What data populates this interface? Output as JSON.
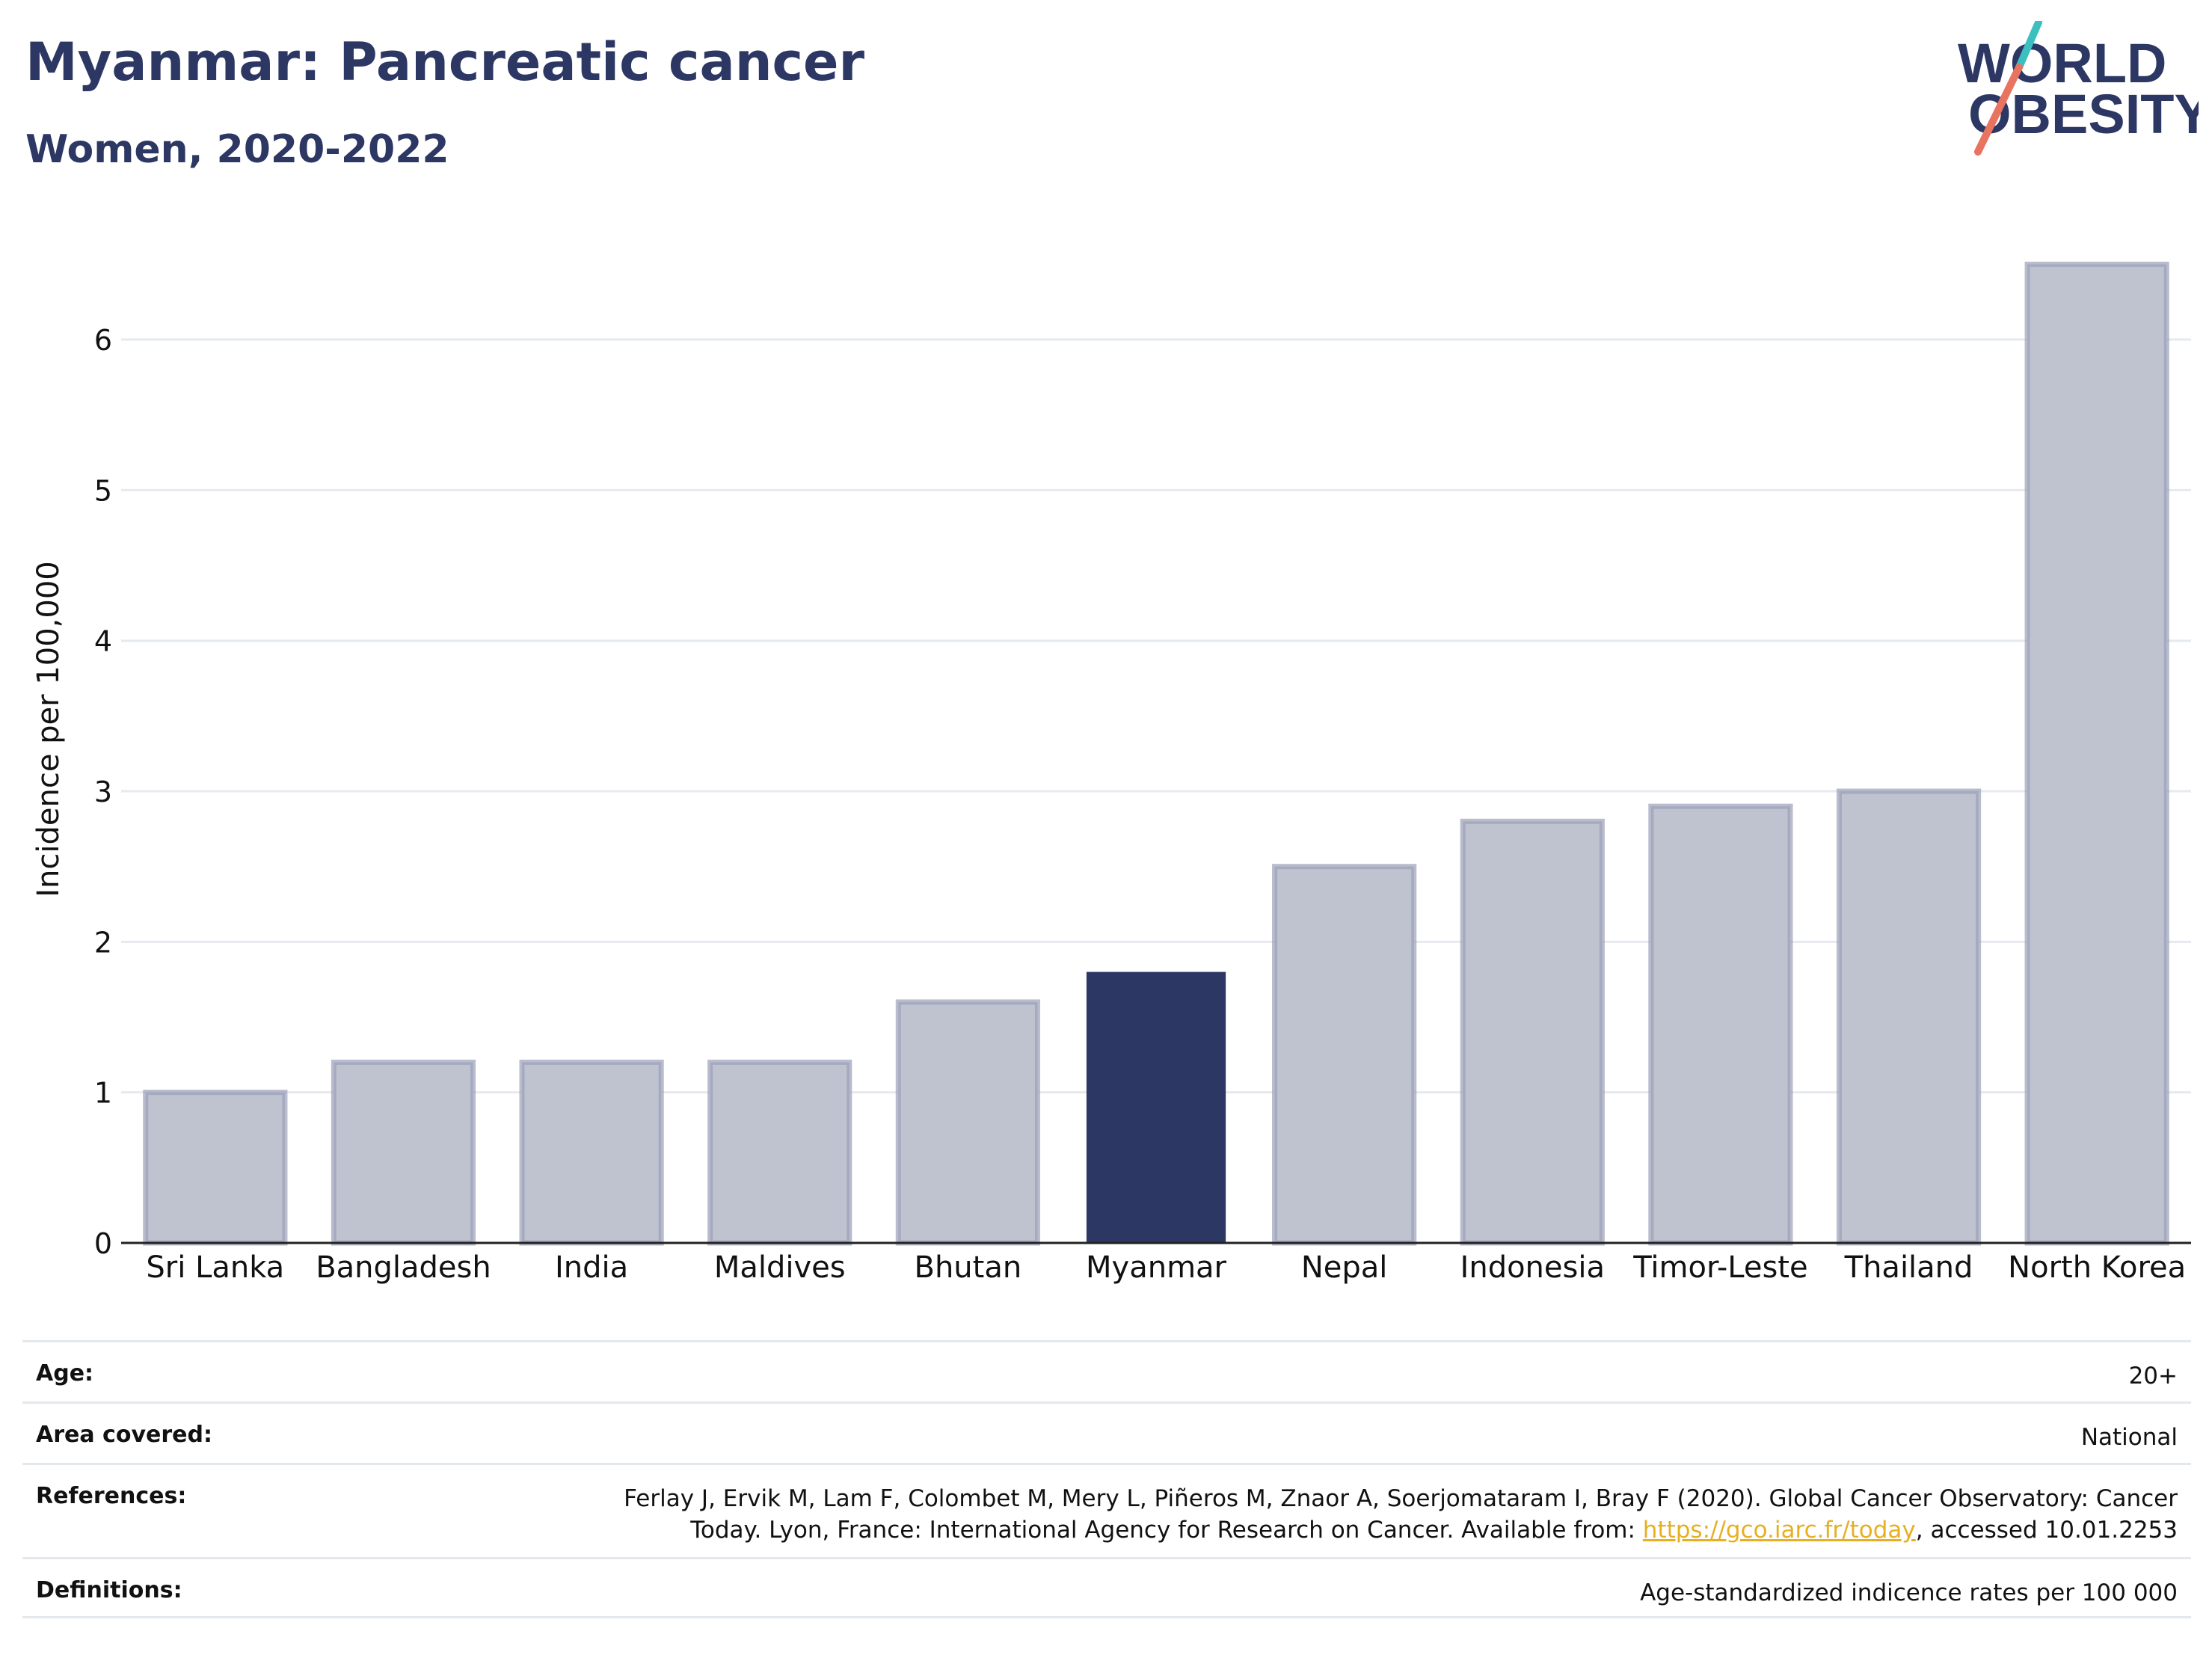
{
  "header": {
    "title": "Myanmar: Pancreatic cancer",
    "subtitle": "Women, 2020-2022"
  },
  "logo": {
    "line1": "WORLD",
    "line2": "OBESITY",
    "colors": {
      "text": "#2c3764",
      "teal": "#3bbfbf",
      "coral": "#e8735f"
    }
  },
  "chart_data": {
    "type": "bar",
    "categories": [
      "Sri Lanka",
      "Bangladesh",
      "India",
      "Maldives",
      "Bhutan",
      "Myanmar",
      "Nepal",
      "Indonesia",
      "Timor-Leste",
      "Thailand",
      "North Korea"
    ],
    "values": [
      1.0,
      1.2,
      1.2,
      1.2,
      1.6,
      1.8,
      2.5,
      2.8,
      2.9,
      3.0,
      6.5
    ],
    "highlight": "Myanmar",
    "ylabel": "Incidence per 100,000",
    "xlabel": "",
    "ylim": [
      0,
      6.8
    ],
    "yticks": [
      0,
      1,
      2,
      3,
      4,
      5,
      6
    ],
    "grid": true,
    "colors": {
      "bar": "#bfc2cf",
      "bar_border": "#9ba0b8",
      "highlight": "#2c3764",
      "grid": "#e6e9ee"
    }
  },
  "meta": {
    "age_label": "Age:",
    "age_value": "20+",
    "area_label": "Area covered:",
    "area_value": "National",
    "references_label": "References:",
    "references_line1": "Ferlay J, Ervik M, Lam F, Colombet M, Mery L, Piñeros M, Znaor A, Soerjomataram I, Bray F (2020). Global Cancer Observatory: Cancer",
    "references_line2_prefix": "Today. Lyon, France: International Agency for Research on Cancer. Available from: ",
    "references_link": "https://gco.iarc.fr/today",
    "references_line2_suffix": ", accessed 10.01.2253",
    "definitions_label": "Definitions:",
    "definitions_value": "Age-standardized indicence rates per 100 000"
  }
}
